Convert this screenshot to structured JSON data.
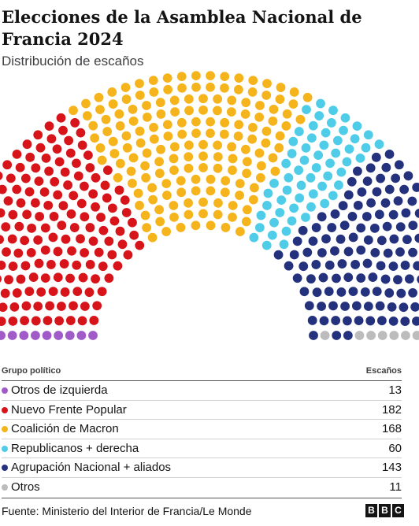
{
  "title": "Elecciones de la Asamblea Nacional de Francia 2024",
  "subtitle": "Distribución de escaños",
  "legend": {
    "group_header": "Grupo político",
    "seats_header": "Escaños",
    "items": [
      {
        "name": "Otros de izquierda",
        "value": "13",
        "color": "#a05bc9"
      },
      {
        "name": "Nuevo Frente Popular",
        "value": "182",
        "color": "#d7141a"
      },
      {
        "name": "Coalición de Macron",
        "value": "168",
        "color": "#f5b41c"
      },
      {
        "name": "Republicanos + derecha",
        "value": "60",
        "color": "#4fcde8"
      },
      {
        "name": "Agrupación Nacional + aliados",
        "value": "143",
        "color": "#24317d"
      },
      {
        "name": "Otros",
        "value": "11",
        "color": "#bcbcbc"
      }
    ]
  },
  "source": "Fuente: Ministerio del Interior de Francia/Le Monde",
  "logo": {
    "letters": [
      "B",
      "B",
      "C"
    ]
  },
  "chart_data": {
    "type": "hemicycle",
    "total_seats": 577,
    "series": [
      {
        "name": "Otros de izquierda",
        "value": 13,
        "color": "#a05bc9"
      },
      {
        "name": "Nuevo Frente Popular",
        "value": 182,
        "color": "#d7141a"
      },
      {
        "name": "Coalición de Macron",
        "value": 168,
        "color": "#f5b41c"
      },
      {
        "name": "Republicanos + derecha",
        "value": 60,
        "color": "#4fcde8"
      },
      {
        "name": "Agrupación Nacional + aliados",
        "value": 143,
        "color": "#24317d"
      },
      {
        "name": "Otros",
        "value": 11,
        "color": "#bcbcbc"
      }
    ]
  }
}
